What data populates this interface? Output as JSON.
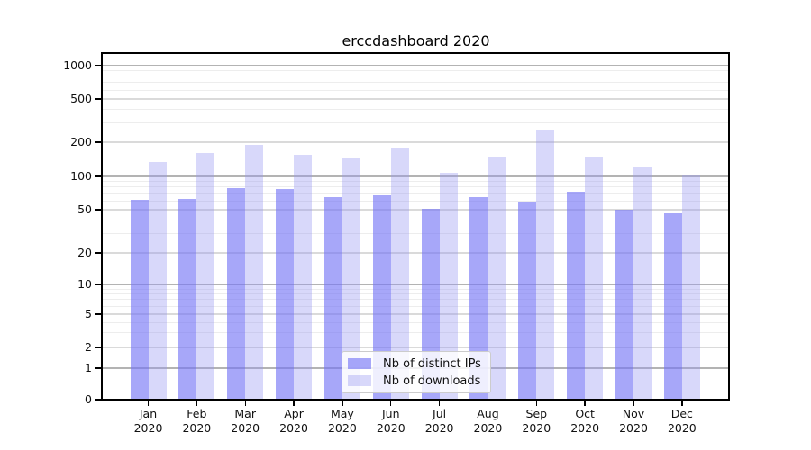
{
  "title": "erccdashboard 2020",
  "chart_data": {
    "type": "bar",
    "title": "erccdashboard 2020",
    "categories": [
      "Jan 2020",
      "Feb 2020",
      "Mar 2020",
      "Apr 2020",
      "May 2020",
      "Jun 2020",
      "Jul 2020",
      "Aug 2020",
      "Sep 2020",
      "Oct 2020",
      "Nov 2020",
      "Dec 2020"
    ],
    "series": [
      {
        "name": "Nb of distinct IPs",
        "color": "rgba(116,116,246,0.63)",
        "color_hex_over_white": "#a7a7f9",
        "values": [
          62,
          63,
          79,
          77,
          65,
          68,
          51,
          65,
          58,
          73,
          50,
          46
        ]
      },
      {
        "name": "Nb of downloads",
        "color": "rgba(150,150,242,0.37)",
        "color_hex_over_white": "#d8d8fa",
        "values": [
          134,
          160,
          190,
          155,
          145,
          180,
          108,
          150,
          255,
          148,
          120,
          102
        ]
      }
    ],
    "yscale": "symlog",
    "y_ticks": [
      0,
      1,
      2,
      5,
      10,
      20,
      50,
      100,
      200,
      500,
      1000
    ],
    "y_minor_decades": [
      1,
      10,
      100
    ],
    "y_minor_mantissas": [
      3,
      4,
      6,
      7,
      8,
      9
    ],
    "ylim": [
      0,
      1300
    ],
    "grid": true,
    "legend_position": "lower center",
    "xlabel": "",
    "ylabel": ""
  },
  "colors": {
    "grid_power10": "#b3b3b3",
    "grid_major": "#dadada",
    "grid_minor": "#ededed",
    "axis": "#000000",
    "text": "#111111"
  }
}
